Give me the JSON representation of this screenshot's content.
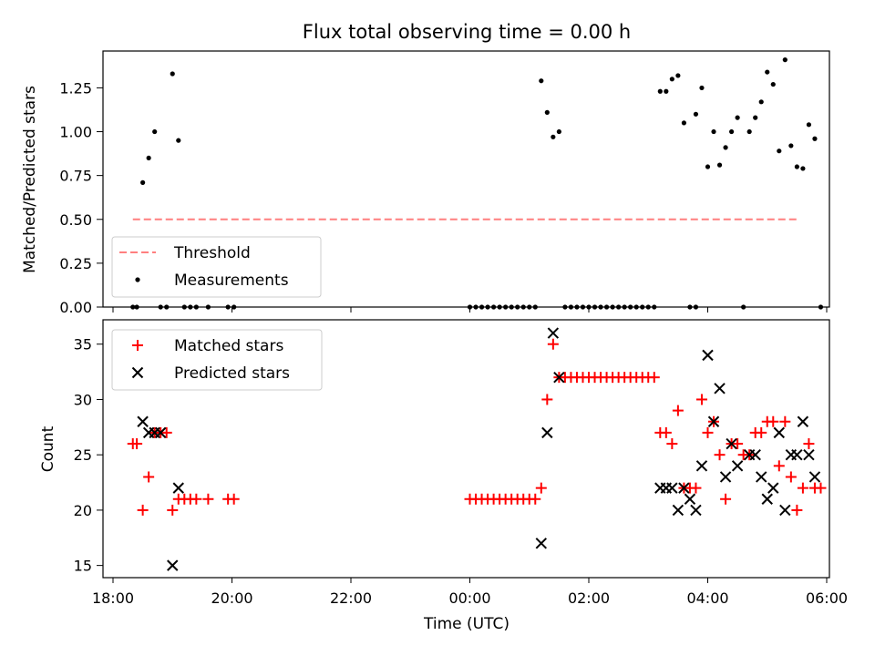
{
  "chart_data": [
    {
      "type": "scatter",
      "title": "Flux total observing time = 0.00 h",
      "ylabel": "Matched/Predicted stars",
      "xlim": [
        "18:00",
        "06:00"
      ],
      "ylim": [
        0,
        1.46
      ],
      "y_ticks": [
        "0.00",
        "0.25",
        "0.50",
        "0.75",
        "1.00",
        "1.25"
      ],
      "legend_position": "lower-left",
      "threshold": {
        "name": "Threshold",
        "value": 0.5,
        "x_range": [
          "18:20",
          "05:30"
        ],
        "color": "#ff7f7f",
        "style": "dashed"
      },
      "series": [
        {
          "name": "Measurements",
          "color": "#000000",
          "marker": "dot",
          "points": [
            [
              "18:20",
              0
            ],
            [
              "18:24",
              0
            ],
            [
              "18:30",
              0.71
            ],
            [
              "18:36",
              0.85
            ],
            [
              "18:42",
              1.0
            ],
            [
              "18:48",
              0
            ],
            [
              "18:54",
              0
            ],
            [
              "19:00",
              1.33
            ],
            [
              "19:06",
              0.95
            ],
            [
              "19:12",
              0
            ],
            [
              "19:18",
              0
            ],
            [
              "19:24",
              0
            ],
            [
              "19:36",
              0
            ],
            [
              "19:56",
              0
            ],
            [
              "20:02",
              0
            ],
            [
              "00:00",
              0
            ],
            [
              "00:06",
              0
            ],
            [
              "00:12",
              0
            ],
            [
              "00:18",
              0
            ],
            [
              "00:24",
              0
            ],
            [
              "00:30",
              0
            ],
            [
              "00:36",
              0
            ],
            [
              "00:42",
              0
            ],
            [
              "00:48",
              0
            ],
            [
              "00:54",
              0
            ],
            [
              "01:00",
              0
            ],
            [
              "01:06",
              0
            ],
            [
              "01:12",
              1.29
            ],
            [
              "01:18",
              1.11
            ],
            [
              "01:24",
              0.97
            ],
            [
              "01:30",
              1.0
            ],
            [
              "01:36",
              0
            ],
            [
              "01:42",
              0
            ],
            [
              "01:48",
              0
            ],
            [
              "01:54",
              0
            ],
            [
              "02:00",
              0
            ],
            [
              "02:06",
              0
            ],
            [
              "02:12",
              0
            ],
            [
              "02:18",
              0
            ],
            [
              "02:24",
              0
            ],
            [
              "02:30",
              0
            ],
            [
              "02:36",
              0
            ],
            [
              "02:42",
              0
            ],
            [
              "02:48",
              0
            ],
            [
              "02:54",
              0
            ],
            [
              "03:00",
              0
            ],
            [
              "03:06",
              0
            ],
            [
              "03:12",
              1.23
            ],
            [
              "03:18",
              1.23
            ],
            [
              "03:24",
              1.3
            ],
            [
              "03:30",
              1.32
            ],
            [
              "03:36",
              1.05
            ],
            [
              "03:42",
              0
            ],
            [
              "03:48",
              0
            ],
            [
              "03:48",
              1.1
            ],
            [
              "03:54",
              1.25
            ],
            [
              "04:00",
              0.8
            ],
            [
              "04:06",
              1.0
            ],
            [
              "04:12",
              0.81
            ],
            [
              "04:18",
              0.91
            ],
            [
              "04:24",
              1.0
            ],
            [
              "04:30",
              1.08
            ],
            [
              "04:42",
              1.0
            ],
            [
              "04:48",
              1.08
            ],
            [
              "04:54",
              1.17
            ],
            [
              "05:00",
              1.34
            ],
            [
              "05:06",
              1.27
            ],
            [
              "05:12",
              0.89
            ],
            [
              "05:18",
              1.41
            ],
            [
              "05:24",
              0.92
            ],
            [
              "05:30",
              0.8
            ],
            [
              "05:36",
              0.79
            ],
            [
              "05:42",
              1.04
            ],
            [
              "05:48",
              0.96
            ],
            [
              "04:36",
              0
            ],
            [
              "05:54",
              0
            ]
          ]
        }
      ]
    },
    {
      "type": "scatter",
      "xlabel": "Time (UTC)",
      "ylabel": "Count",
      "xlim": [
        "18:00",
        "06:00"
      ],
      "ylim": [
        13.9,
        37.2
      ],
      "x_ticks": [
        "18:00",
        "20:00",
        "22:00",
        "00:00",
        "02:00",
        "04:00",
        "06:00"
      ],
      "y_ticks": [
        "15",
        "20",
        "25",
        "30",
        "35"
      ],
      "legend_position": "upper-left",
      "series": [
        {
          "name": "Matched stars",
          "color": "#ff0000",
          "marker": "plus",
          "points": [
            [
              "18:20",
              26
            ],
            [
              "18:24",
              26
            ],
            [
              "18:30",
              20
            ],
            [
              "18:36",
              23
            ],
            [
              "18:42",
              27
            ],
            [
              "18:48",
              27
            ],
            [
              "18:54",
              27
            ],
            [
              "19:00",
              20
            ],
            [
              "19:06",
              21
            ],
            [
              "19:12",
              21
            ],
            [
              "19:18",
              21
            ],
            [
              "19:24",
              21
            ],
            [
              "19:36",
              21
            ],
            [
              "19:56",
              21
            ],
            [
              "20:02",
              21
            ],
            [
              "00:00",
              21
            ],
            [
              "00:06",
              21
            ],
            [
              "00:12",
              21
            ],
            [
              "00:18",
              21
            ],
            [
              "00:24",
              21
            ],
            [
              "00:30",
              21
            ],
            [
              "00:36",
              21
            ],
            [
              "00:42",
              21
            ],
            [
              "00:48",
              21
            ],
            [
              "00:54",
              21
            ],
            [
              "01:00",
              21
            ],
            [
              "01:06",
              21
            ],
            [
              "01:12",
              22
            ],
            [
              "01:18",
              30
            ],
            [
              "01:24",
              35
            ],
            [
              "01:30",
              32
            ],
            [
              "01:36",
              32
            ],
            [
              "01:42",
              32
            ],
            [
              "01:48",
              32
            ],
            [
              "01:54",
              32
            ],
            [
              "02:00",
              32
            ],
            [
              "02:06",
              32
            ],
            [
              "02:12",
              32
            ],
            [
              "02:18",
              32
            ],
            [
              "02:24",
              32
            ],
            [
              "02:30",
              32
            ],
            [
              "02:36",
              32
            ],
            [
              "02:42",
              32
            ],
            [
              "02:48",
              32
            ],
            [
              "02:54",
              32
            ],
            [
              "03:00",
              32
            ],
            [
              "03:06",
              32
            ],
            [
              "03:12",
              27
            ],
            [
              "03:18",
              27
            ],
            [
              "03:24",
              26
            ],
            [
              "03:30",
              29
            ],
            [
              "03:36",
              22
            ],
            [
              "03:42",
              22
            ],
            [
              "03:48",
              22
            ],
            [
              "03:54",
              30
            ],
            [
              "04:00",
              27
            ],
            [
              "04:06",
              28
            ],
            [
              "04:12",
              25
            ],
            [
              "04:18",
              21
            ],
            [
              "04:24",
              26
            ],
            [
              "04:30",
              26
            ],
            [
              "04:36",
              25
            ],
            [
              "04:42",
              25
            ],
            [
              "04:48",
              27
            ],
            [
              "04:54",
              27
            ],
            [
              "05:00",
              28
            ],
            [
              "05:06",
              28
            ],
            [
              "05:12",
              24
            ],
            [
              "05:18",
              28
            ],
            [
              "05:24",
              23
            ],
            [
              "05:30",
              20
            ],
            [
              "05:36",
              22
            ],
            [
              "05:42",
              26
            ],
            [
              "05:48",
              22
            ],
            [
              "05:54",
              22
            ]
          ]
        },
        {
          "name": "Predicted stars",
          "color": "#000000",
          "marker": "x",
          "points": [
            [
              "18:30",
              28
            ],
            [
              "18:36",
              27
            ],
            [
              "18:42",
              27
            ],
            [
              "18:48",
              27
            ],
            [
              "19:00",
              15
            ],
            [
              "19:06",
              22
            ],
            [
              "01:12",
              17
            ],
            [
              "01:18",
              27
            ],
            [
              "01:24",
              36
            ],
            [
              "01:30",
              32
            ],
            [
              "03:12",
              22
            ],
            [
              "03:18",
              22
            ],
            [
              "03:24",
              22
            ],
            [
              "03:30",
              20
            ],
            [
              "03:36",
              22
            ],
            [
              "03:42",
              21
            ],
            [
              "03:48",
              20
            ],
            [
              "03:54",
              24
            ],
            [
              "04:00",
              34
            ],
            [
              "04:06",
              28
            ],
            [
              "04:12",
              31
            ],
            [
              "04:18",
              23
            ],
            [
              "04:24",
              26
            ],
            [
              "04:30",
              24
            ],
            [
              "04:42",
              25
            ],
            [
              "04:48",
              25
            ],
            [
              "04:54",
              23
            ],
            [
              "05:00",
              21
            ],
            [
              "05:06",
              22
            ],
            [
              "05:12",
              27
            ],
            [
              "05:18",
              20
            ],
            [
              "05:24",
              25
            ],
            [
              "05:30",
              25
            ],
            [
              "05:36",
              28
            ],
            [
              "05:42",
              25
            ],
            [
              "05:48",
              23
            ]
          ]
        }
      ]
    }
  ]
}
